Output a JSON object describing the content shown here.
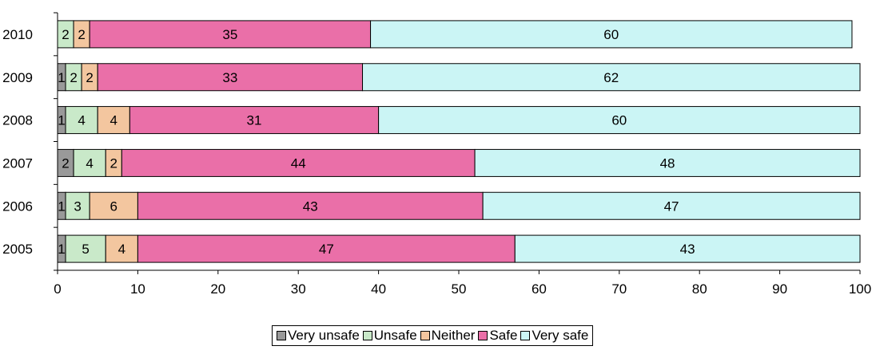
{
  "chart_data": {
    "type": "bar",
    "orientation": "horizontal",
    "stacked": true,
    "categories": [
      "2010",
      "2009",
      "2008",
      "2007",
      "2006",
      "2005"
    ],
    "series": [
      {
        "name": "Very unsafe",
        "color": "#999999",
        "values": [
          0,
          1,
          1,
          2,
          1,
          1
        ],
        "labels": [
          "",
          "1",
          "1",
          "2",
          "1",
          "1"
        ]
      },
      {
        "name": "Unsafe",
        "color": "#c9e9c9",
        "values": [
          2,
          2,
          4,
          4,
          3,
          5
        ],
        "labels": [
          "2",
          "2",
          "4",
          "4",
          "3",
          "5"
        ]
      },
      {
        "name": "Neither",
        "color": "#f3c69f",
        "values": [
          2,
          2,
          4,
          2,
          6,
          4
        ],
        "labels": [
          "2",
          "2",
          "4",
          "2",
          "6",
          "4"
        ]
      },
      {
        "name": "Safe",
        "color": "#ea6fa8",
        "values": [
          35,
          33,
          31,
          44,
          43,
          47
        ],
        "labels": [
          "35",
          "33",
          "31",
          "44",
          "43",
          "47"
        ]
      },
      {
        "name": "Very safe",
        "color": "#cbf5f5",
        "values": [
          60,
          62,
          60,
          48,
          47,
          43
        ],
        "labels": [
          "60",
          "62",
          "60",
          "48",
          "47",
          "43"
        ]
      }
    ],
    "xlim": [
      0,
      100
    ],
    "xticks": [
      "0",
      "10",
      "20",
      "30",
      "40",
      "50",
      "60",
      "70",
      "80",
      "90",
      "100"
    ],
    "title": "",
    "xlabel": "",
    "ylabel": "",
    "grid": false,
    "legend_position": "bottom"
  }
}
